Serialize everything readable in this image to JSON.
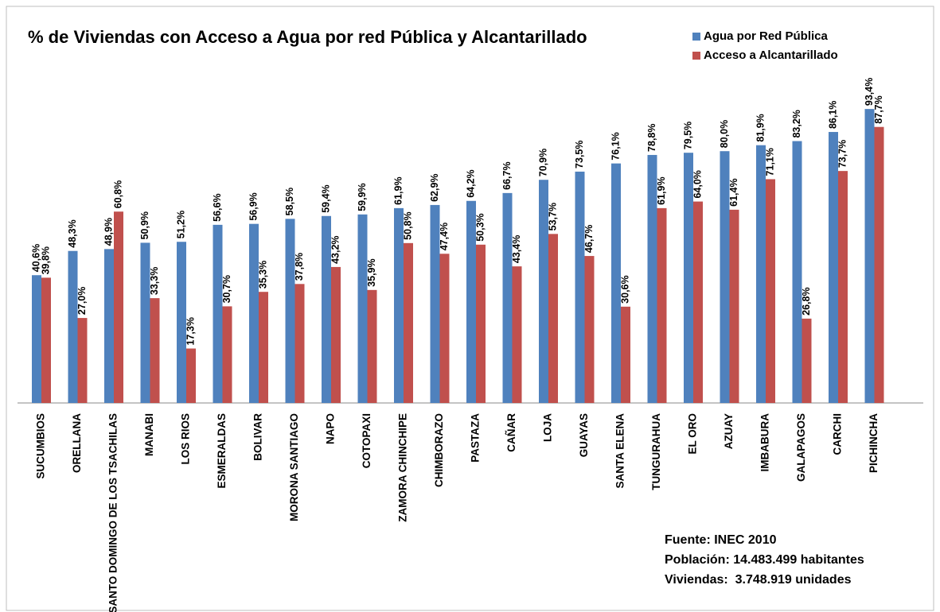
{
  "chart_data": {
    "type": "bar",
    "title": "% de Viviendas con Acceso a Agua por red Pública y Alcantarillado",
    "categories": [
      "SUCUMBIOS",
      "ORELLANA",
      "SANTO DOMINGO DE LOS TSACHILAS",
      "MANABI",
      "LOS RIOS",
      "ESMERALDAS",
      "BOLIVAR",
      "MORONA SANTIAGO",
      "NAPO",
      "COTOPAXI",
      "ZAMORA CHINCHIPE",
      "CHIMBORAZO",
      "PASTAZA",
      "CAÑAR",
      "LOJA",
      "GUAYAS",
      "SANTA ELENA",
      "TUNGURAHUA",
      "EL ORO",
      "AZUAY",
      "IMBABURA",
      "GALAPAGOS",
      "CARCHI",
      "PICHINCHA"
    ],
    "series": [
      {
        "name": "Agua por Red Pública",
        "color": "#4f81bd",
        "values": [
          40.6,
          48.3,
          48.9,
          50.9,
          51.2,
          56.6,
          56.9,
          58.5,
          59.4,
          59.9,
          61.9,
          62.9,
          64.2,
          66.7,
          70.9,
          73.5,
          76.1,
          78.8,
          79.5,
          80.0,
          81.9,
          83.2,
          86.1,
          93.4
        ],
        "value_labels": [
          "40,6%",
          "48,3%",
          "48,9%",
          "50,9%",
          "51,2%",
          "56,6%",
          "56,9%",
          "58,5%",
          "59,4%",
          "59,9%",
          "61,9%",
          "62,9%",
          "64,2%",
          "66,7%",
          "70,9%",
          "73,5%",
          "76,1%",
          "78,8%",
          "79,5%",
          "80,0%",
          "81,9%",
          "83,2%",
          "86,1%",
          "93,4%"
        ]
      },
      {
        "name": "Acceso a Alcantarillado",
        "color": "#c0504d",
        "values": [
          39.8,
          27.0,
          60.8,
          33.3,
          17.3,
          30.7,
          35.3,
          37.8,
          43.2,
          35.9,
          50.8,
          47.4,
          50.3,
          43.4,
          53.7,
          46.7,
          30.6,
          61.9,
          64.0,
          61.4,
          71.1,
          26.8,
          73.7,
          87.7
        ],
        "value_labels": [
          "39,8%",
          "27,0%",
          "60,8%",
          "33,3%",
          "17,3%",
          "30,7%",
          "35,3%",
          "37,8%",
          "43,2%",
          "35,9%",
          "50,8%",
          "47,4%",
          "50,3%",
          "43,4%",
          "53,7%",
          "46,7%",
          "30,6%",
          "61,9%",
          "64,0%",
          "61,4%",
          "71,1%",
          "26,8%",
          "73,7%",
          "87,7%"
        ]
      }
    ],
    "ylim": [
      0,
      100
    ],
    "legend": "top-right",
    "annotations": [
      "Fuente: INEC 2010",
      "Población: 14.483.499 habitantes",
      "Viviendas:  3.748.919 unidades"
    ]
  }
}
